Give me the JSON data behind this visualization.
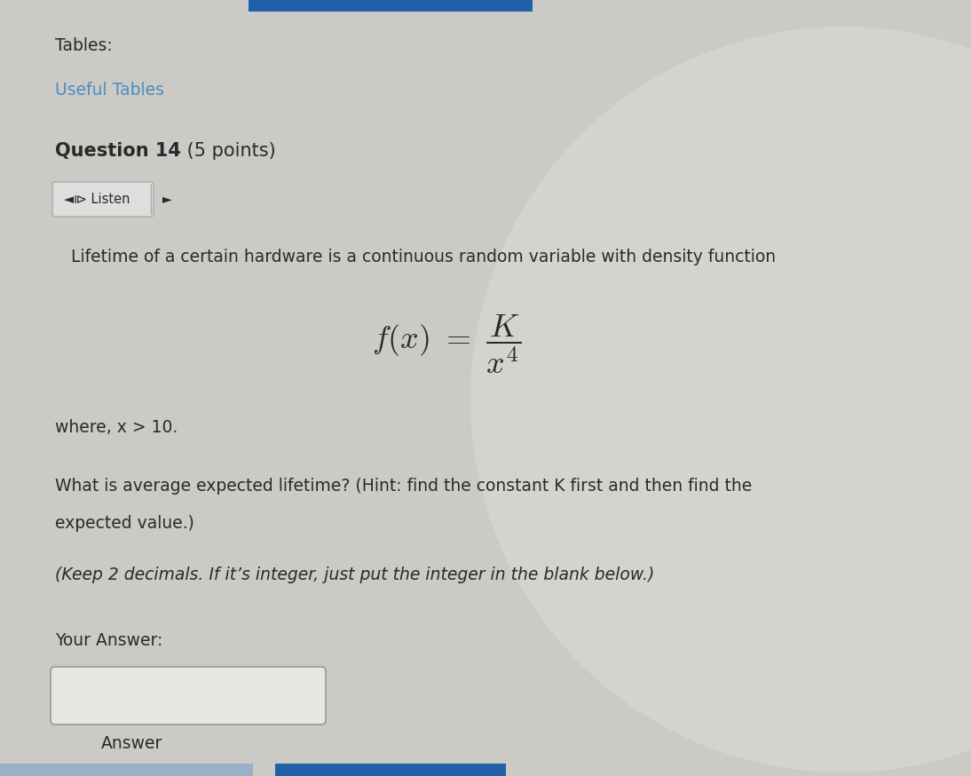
{
  "bg_color": "#cccac6",
  "content_bg": "#e8e6e2",
  "text_color": "#2a2a2a",
  "title_tables": "Tables:",
  "title_useful": "Useful Tables",
  "question_bold": "Question 14",
  "question_normal": " (5 points)",
  "body_line1": "Lifetime of a certain hardware is a continuous random variable with density function",
  "where_text": "where, x > 10.",
  "question_text1": "What is average expected lifetime? (Hint: find the constant K first and then find the",
  "question_text2": "expected value.)",
  "italic_text": "(Keep 2 decimals. If it’s integer, just put the integer in the blank below.)",
  "your_answer": "Your Answer:",
  "answer_label": "Answer",
  "link_color": "#4a8fbf",
  "button_border": "#aaaaaa",
  "button_bg": "#e0dedd",
  "answer_box_bg": "#e8e6e2",
  "answer_box_border": "#999999",
  "bottom_bar_color": "#2060a8",
  "bottom_bar2_color": "#9ab0c8",
  "circle_color": "#dddbd7",
  "top_bar_color": "#2060a8"
}
